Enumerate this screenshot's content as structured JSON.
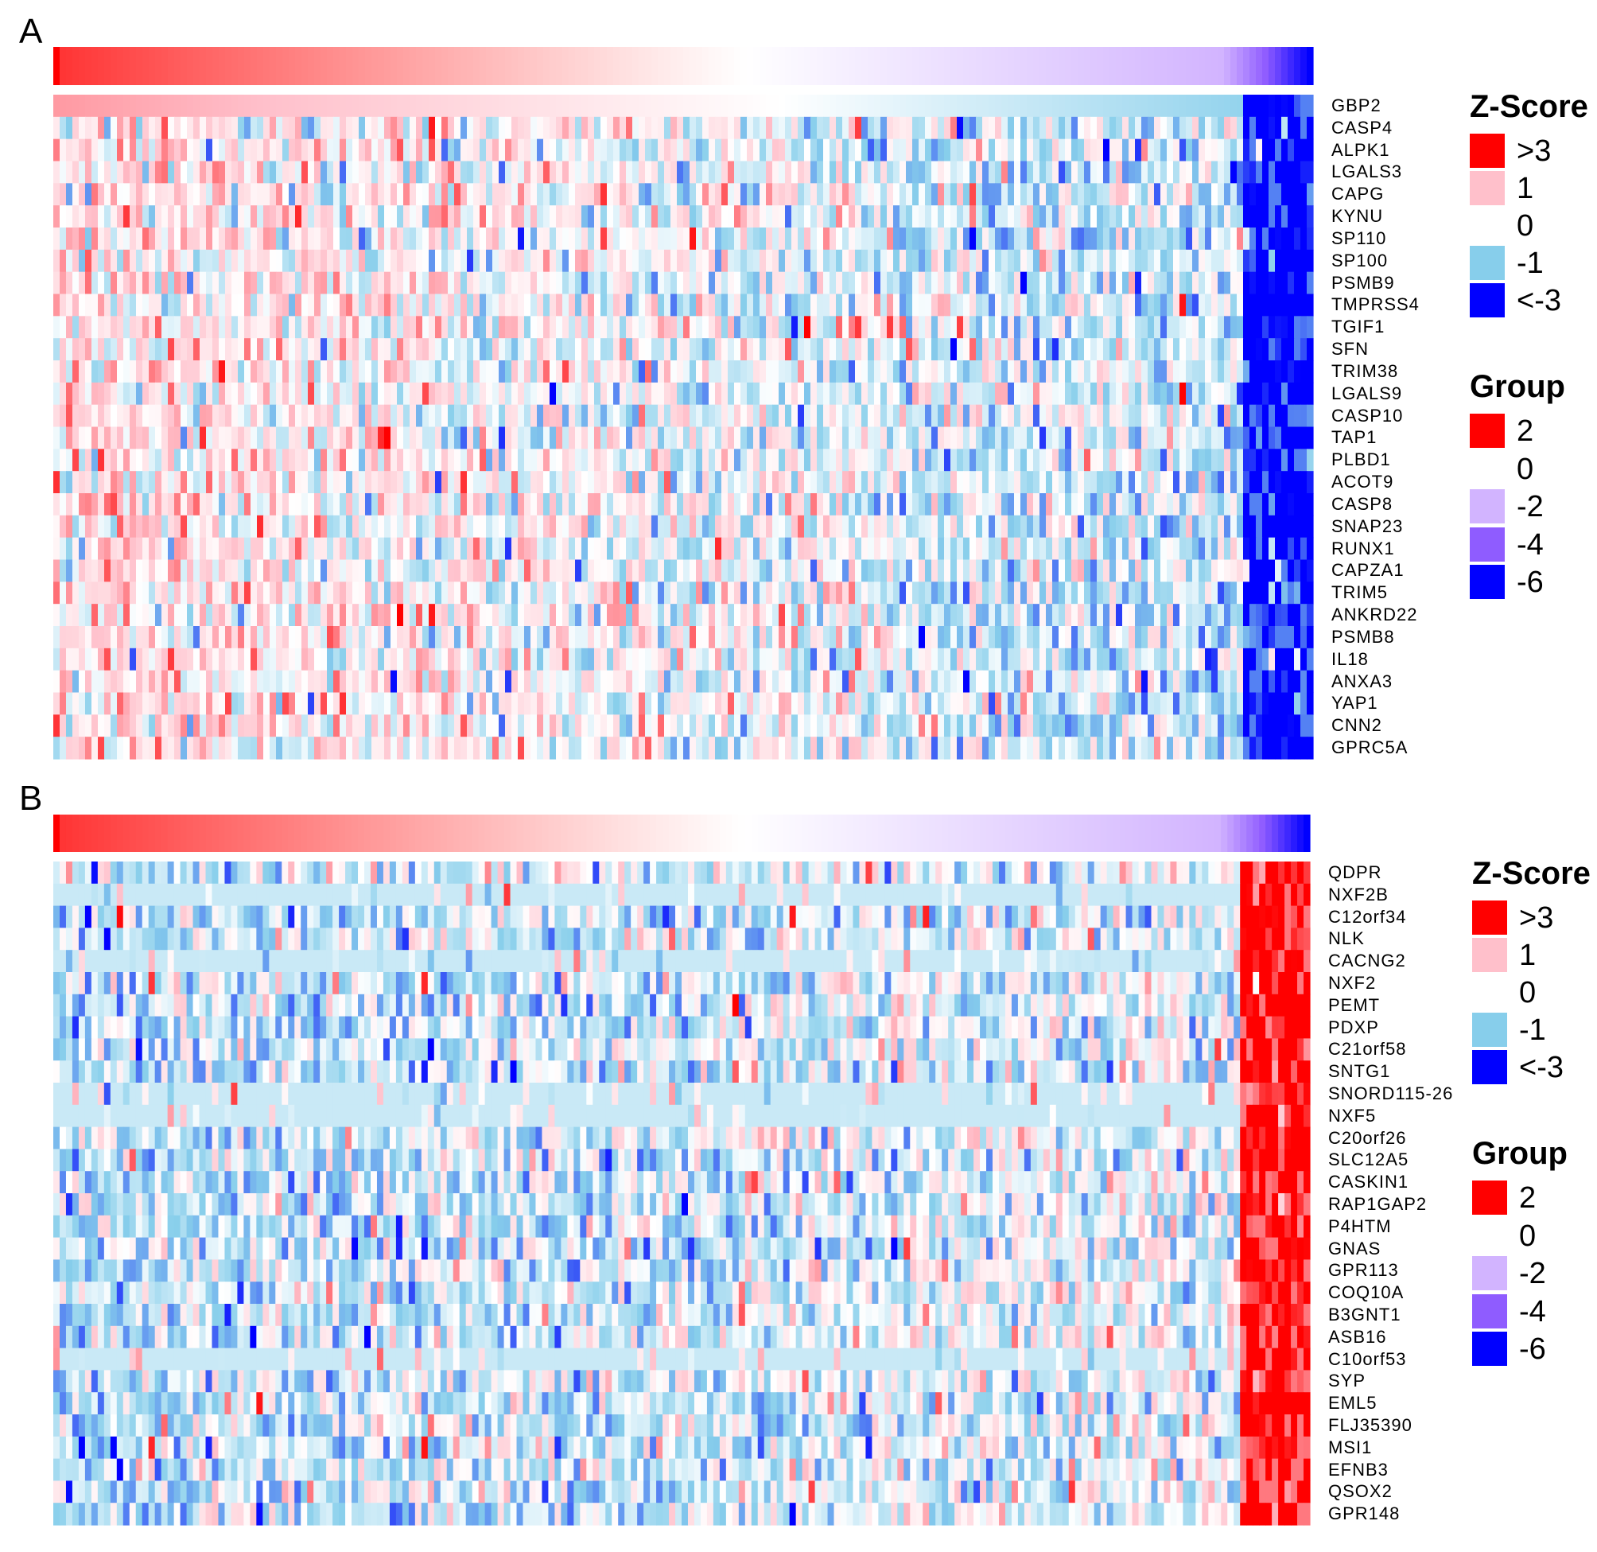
{
  "chart_data": [
    {
      "panel": "A",
      "type": "heatmap",
      "rows": [
        "GBP2",
        "CASP4",
        "ALPK1",
        "LGALS3",
        "CAPG",
        "KYNU",
        "SP110",
        "SP100",
        "PSMB9",
        "TMPRSS4",
        "TGIF1",
        "SFN",
        "TRIM38",
        "LGALS9",
        "CASP10",
        "TAP1",
        "PLBD1",
        "ACOT9",
        "CASP8",
        "SNAP23",
        "RUNX1",
        "CAPZA1",
        "TRIM5",
        "ANKRD22",
        "PSMB8",
        "IL18",
        "ANXA3",
        "YAP1",
        "CNN2",
        "GPRC5A"
      ],
      "group_annotation": {
        "range": [
          2,
          -6
        ],
        "description": "columns sorted by group score, decreasing"
      },
      "pattern": {
        "left_columns_mean_z": 0.5,
        "right_columns_mean_z": -0.5,
        "last_block_z": -3.5,
        "top_row_smooth": true
      },
      "legend_zscore": {
        "title": "Z-Score",
        "entries": [
          {
            "label": ">3",
            "color": "#FF0000"
          },
          {
            "label": "1",
            "color": "#FFC0CB"
          },
          {
            "label": "0",
            "color": "#FFFFFF"
          },
          {
            "label": "-1",
            "color": "#87CEEB"
          },
          {
            "label": "<-3",
            "color": "#0000FF"
          }
        ]
      },
      "legend_group": {
        "title": "Group",
        "entries": [
          {
            "label": "2",
            "color": "#FF0000"
          },
          {
            "label": "0",
            "color": "#FFFFFF"
          },
          {
            "label": "-2",
            "color": "#D2B4FF"
          },
          {
            "label": "-4",
            "color": "#8F5CFF"
          },
          {
            "label": "-6",
            "color": "#0000FF"
          }
        ]
      }
    },
    {
      "panel": "B",
      "type": "heatmap",
      "rows": [
        "QDPR",
        "NXF2B",
        "C12orf34",
        "NLK",
        "CACNG2",
        "NXF2",
        "PEMT",
        "PDXP",
        "C21orf58",
        "SNTG1",
        "SNORD115-26",
        "NXF5",
        "C20orf26",
        "SLC12A5",
        "CASKIN1",
        "RAP1GAP2",
        "P4HTM",
        "GNAS",
        "GPR113",
        "COQ10A",
        "B3GNT1",
        "ASB16",
        "C10orf53",
        "SYP",
        "EML5",
        "FLJ35390",
        "MSI1",
        "EFNB3",
        "QSOX2",
        "GPR148"
      ],
      "flat_rows": [
        "NXF2B",
        "CACNG2",
        "SNORD115-26",
        "NXF5",
        "C10orf53"
      ],
      "group_annotation": {
        "range": [
          2,
          -6
        ],
        "description": "columns sorted by group score, decreasing"
      },
      "pattern": {
        "left_columns_mean_z": -0.6,
        "right_columns_mean_z": -0.1,
        "last_block_z": 3.5
      },
      "legend_zscore": {
        "title": "Z-Score",
        "entries": [
          {
            "label": ">3",
            "color": "#FF0000"
          },
          {
            "label": "1",
            "color": "#FFC0CB"
          },
          {
            "label": "0",
            "color": "#FFFFFF"
          },
          {
            "label": "-1",
            "color": "#87CEEB"
          },
          {
            "label": "<-3",
            "color": "#0000FF"
          }
        ]
      },
      "legend_group": {
        "title": "Group",
        "entries": [
          {
            "label": "2",
            "color": "#FF0000"
          },
          {
            "label": "0",
            "color": "#FFFFFF"
          },
          {
            "label": "-2",
            "color": "#D2B4FF"
          },
          {
            "label": "-4",
            "color": "#8F5CFF"
          },
          {
            "label": "-6",
            "color": "#0000FF"
          }
        ]
      }
    }
  ]
}
